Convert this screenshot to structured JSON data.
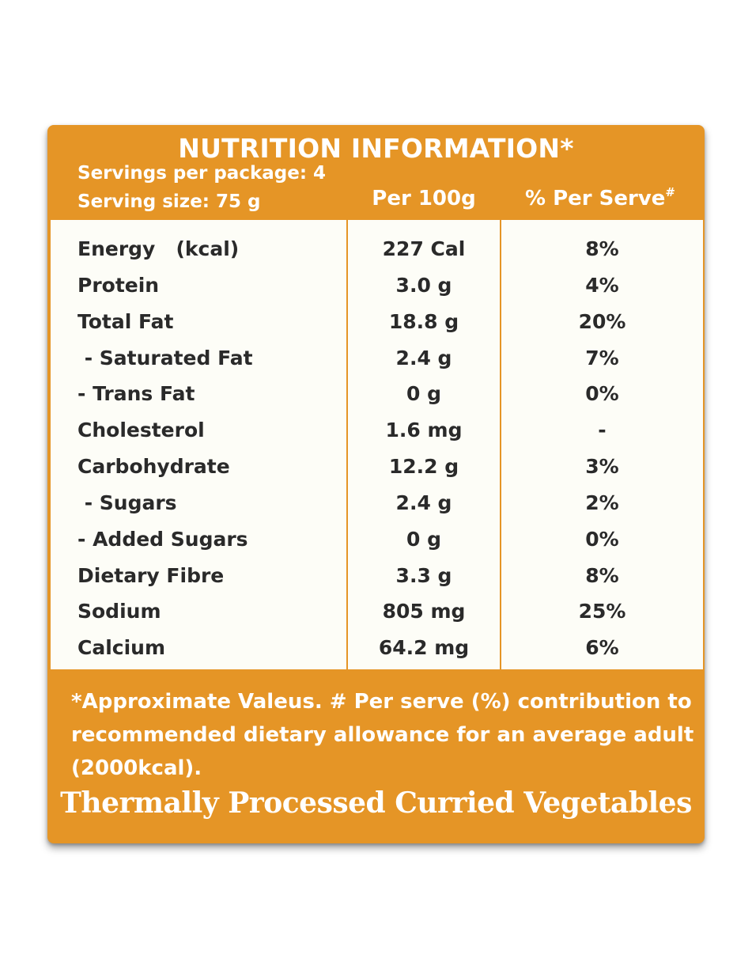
{
  "label": {
    "title": "NUTRITION INFORMATION*",
    "servings_per_package": "Servings per package: 4",
    "serving_size": "Serving size: 75 g",
    "col_per100": "Per 100g",
    "col_perserve": "% Per Serve",
    "col_perserve_mark": "#",
    "rows": [
      {
        "name": "Energy   (kcal)",
        "per100": "227 Cal",
        "perserve": "8%"
      },
      {
        "name": "Protein",
        "per100": "3.0 g",
        "perserve": "4%"
      },
      {
        "name": "Total Fat",
        "per100": "18.8 g",
        "perserve": "20%"
      },
      {
        "name": " - Saturated Fat",
        "per100": "2.4 g",
        "perserve": "7%"
      },
      {
        "name": "- Trans Fat",
        "per100": "0 g",
        "perserve": "0%"
      },
      {
        "name": "Cholesterol",
        "per100": "1.6 mg",
        "perserve": "-"
      },
      {
        "name": "Carbohydrate",
        "per100": "12.2 g",
        "perserve": "3%"
      },
      {
        "name": " - Sugars",
        "per100": "2.4 g",
        "perserve": "2%"
      },
      {
        "name": "- Added Sugars",
        "per100": "0 g",
        "perserve": "0%"
      },
      {
        "name": "Dietary Fibre",
        "per100": "3.3 g",
        "perserve": "8%"
      },
      {
        "name": "Sodium",
        "per100": "805 mg",
        "perserve": "25%"
      },
      {
        "name": "Calcium",
        "per100": "64.2 mg",
        "perserve": "6%"
      }
    ],
    "footnote": "*Approximate Valeus. # Per serve (%) contribution to recommended dietary allowance for an average adult (2000kcal).",
    "product_name": "Thermally Processed Curried Vegetables"
  },
  "colors": {
    "accent": "#e59526",
    "panel": "#fdfdf7",
    "text": "#2a2a2a"
  }
}
